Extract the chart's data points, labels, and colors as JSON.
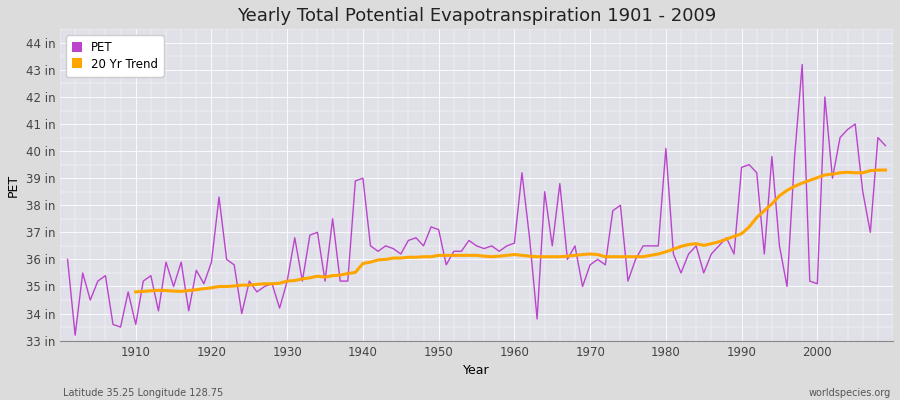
{
  "title": "Yearly Total Potential Evapotranspiration 1901 - 2009",
  "xlabel": "Year",
  "ylabel": "PET",
  "footnote_left": "Latitude 35.25 Longitude 128.75",
  "footnote_right": "worldspecies.org",
  "years": [
    1901,
    1902,
    1903,
    1904,
    1905,
    1906,
    1907,
    1908,
    1909,
    1910,
    1911,
    1912,
    1913,
    1914,
    1915,
    1916,
    1917,
    1918,
    1919,
    1920,
    1921,
    1922,
    1923,
    1924,
    1925,
    1926,
    1927,
    1928,
    1929,
    1930,
    1931,
    1932,
    1933,
    1934,
    1935,
    1936,
    1937,
    1938,
    1939,
    1940,
    1941,
    1942,
    1943,
    1944,
    1945,
    1946,
    1947,
    1948,
    1949,
    1950,
    1951,
    1952,
    1953,
    1954,
    1955,
    1956,
    1957,
    1958,
    1959,
    1960,
    1961,
    1962,
    1963,
    1964,
    1965,
    1966,
    1967,
    1968,
    1969,
    1970,
    1971,
    1972,
    1973,
    1974,
    1975,
    1976,
    1977,
    1978,
    1979,
    1980,
    1981,
    1982,
    1983,
    1984,
    1985,
    1986,
    1987,
    1988,
    1989,
    1990,
    1991,
    1992,
    1993,
    1994,
    1995,
    1996,
    1997,
    1998,
    1999,
    2000,
    2001,
    2002,
    2003,
    2004,
    2005,
    2006,
    2007,
    2008,
    2009
  ],
  "pet": [
    36.0,
    33.2,
    35.5,
    34.5,
    35.2,
    35.4,
    33.6,
    33.5,
    34.8,
    33.6,
    35.2,
    35.4,
    34.1,
    35.9,
    35.0,
    35.9,
    34.1,
    35.6,
    35.1,
    35.9,
    38.3,
    36.0,
    35.8,
    34.0,
    35.2,
    34.8,
    35.0,
    35.1,
    34.2,
    35.2,
    36.8,
    35.2,
    36.9,
    37.0,
    35.2,
    37.5,
    35.2,
    35.2,
    38.9,
    39.0,
    36.5,
    36.3,
    36.5,
    36.4,
    36.2,
    36.7,
    36.8,
    36.5,
    37.2,
    37.1,
    35.8,
    36.3,
    36.3,
    36.7,
    36.5,
    36.4,
    36.5,
    36.3,
    36.5,
    36.6,
    39.2,
    36.8,
    33.8,
    38.5,
    36.5,
    38.8,
    36.0,
    36.5,
    35.0,
    35.8,
    36.0,
    35.8,
    37.8,
    38.0,
    35.2,
    36.0,
    36.5,
    36.5,
    36.5,
    40.1,
    36.2,
    35.5,
    36.2,
    36.5,
    35.5,
    36.2,
    36.5,
    36.8,
    36.2,
    39.4,
    39.5,
    39.2,
    36.2,
    39.8,
    36.5,
    35.0,
    39.8,
    43.2,
    35.2,
    35.1,
    42.0,
    39.0,
    40.5,
    40.8,
    41.0,
    38.5,
    37.0,
    40.5,
    40.2
  ],
  "trend_years": [
    1910,
    1911,
    1912,
    1913,
    1914,
    1915,
    1916,
    1917,
    1918,
    1919,
    1920,
    1921,
    1922,
    1923,
    1924,
    1925,
    1926,
    1927,
    1928,
    1929,
    1930,
    1931,
    1932,
    1933,
    1934,
    1935,
    1936,
    1937,
    1938,
    1939,
    1940,
    1941,
    1942,
    1943,
    1944,
    1945,
    1946,
    1947,
    1948,
    1949,
    1950,
    1951,
    1952,
    1953,
    1954,
    1955,
    1956,
    1957,
    1958,
    1959,
    1960,
    1961,
    1962,
    1963,
    1964,
    1965,
    1966,
    1967,
    1968,
    1969,
    1970,
    1971,
    1972,
    1973,
    1974,
    1975,
    1976,
    1977,
    1978,
    1979,
    1980,
    1981,
    1982,
    1983,
    1984,
    1985,
    1986,
    1987,
    1988,
    1989,
    1990,
    1991,
    1992,
    1993,
    1994,
    1995,
    1996,
    1997,
    1998,
    1999,
    2000,
    2001,
    2002,
    2003,
    2004,
    2005,
    2006,
    2007,
    2008,
    2009
  ],
  "trend": [
    34.8,
    34.82,
    34.84,
    34.86,
    34.85,
    34.83,
    34.82,
    34.85,
    34.88,
    34.92,
    34.95,
    35.0,
    35.0,
    35.02,
    35.05,
    35.05,
    35.08,
    35.1,
    35.1,
    35.12,
    35.2,
    35.22,
    35.28,
    35.32,
    35.38,
    35.35,
    35.4,
    35.42,
    35.48,
    35.52,
    35.85,
    35.9,
    35.98,
    36.0,
    36.05,
    36.05,
    36.08,
    36.08,
    36.1,
    36.1,
    36.15,
    36.15,
    36.15,
    36.15,
    36.15,
    36.15,
    36.12,
    36.1,
    36.12,
    36.15,
    36.18,
    36.15,
    36.12,
    36.1,
    36.1,
    36.1,
    36.1,
    36.12,
    36.15,
    36.18,
    36.2,
    36.18,
    36.1,
    36.1,
    36.1,
    36.1,
    36.1,
    36.1,
    36.15,
    36.2,
    36.28,
    36.38,
    36.48,
    36.55,
    36.58,
    36.52,
    36.58,
    36.65,
    36.75,
    36.85,
    36.95,
    37.2,
    37.55,
    37.8,
    38.05,
    38.35,
    38.55,
    38.7,
    38.82,
    38.92,
    39.02,
    39.12,
    39.15,
    39.2,
    39.22,
    39.2,
    39.2,
    39.28,
    39.3,
    39.3
  ],
  "pet_color": "#BB44CC",
  "trend_color": "#FFA500",
  "fig_bg_color": "#DCDCDC",
  "plot_bg_color": "#E0E0E8",
  "grid_color": "#FFFFFF",
  "ylim": [
    33.0,
    44.5
  ],
  "yticks": [
    33,
    34,
    35,
    36,
    37,
    38,
    39,
    40,
    41,
    42,
    43,
    44
  ],
  "ytick_labels": [
    "33 in",
    "34 in",
    "35 in",
    "36 in",
    "37 in",
    "38 in",
    "39 in",
    "40 in",
    "41 in",
    "42 in",
    "43 in",
    "44 in"
  ],
  "xticks": [
    1910,
    1920,
    1930,
    1940,
    1950,
    1960,
    1970,
    1980,
    1990,
    2000
  ],
  "xlim": [
    1900,
    2010
  ],
  "title_fontsize": 13,
  "label_fontsize": 9,
  "tick_fontsize": 8.5
}
